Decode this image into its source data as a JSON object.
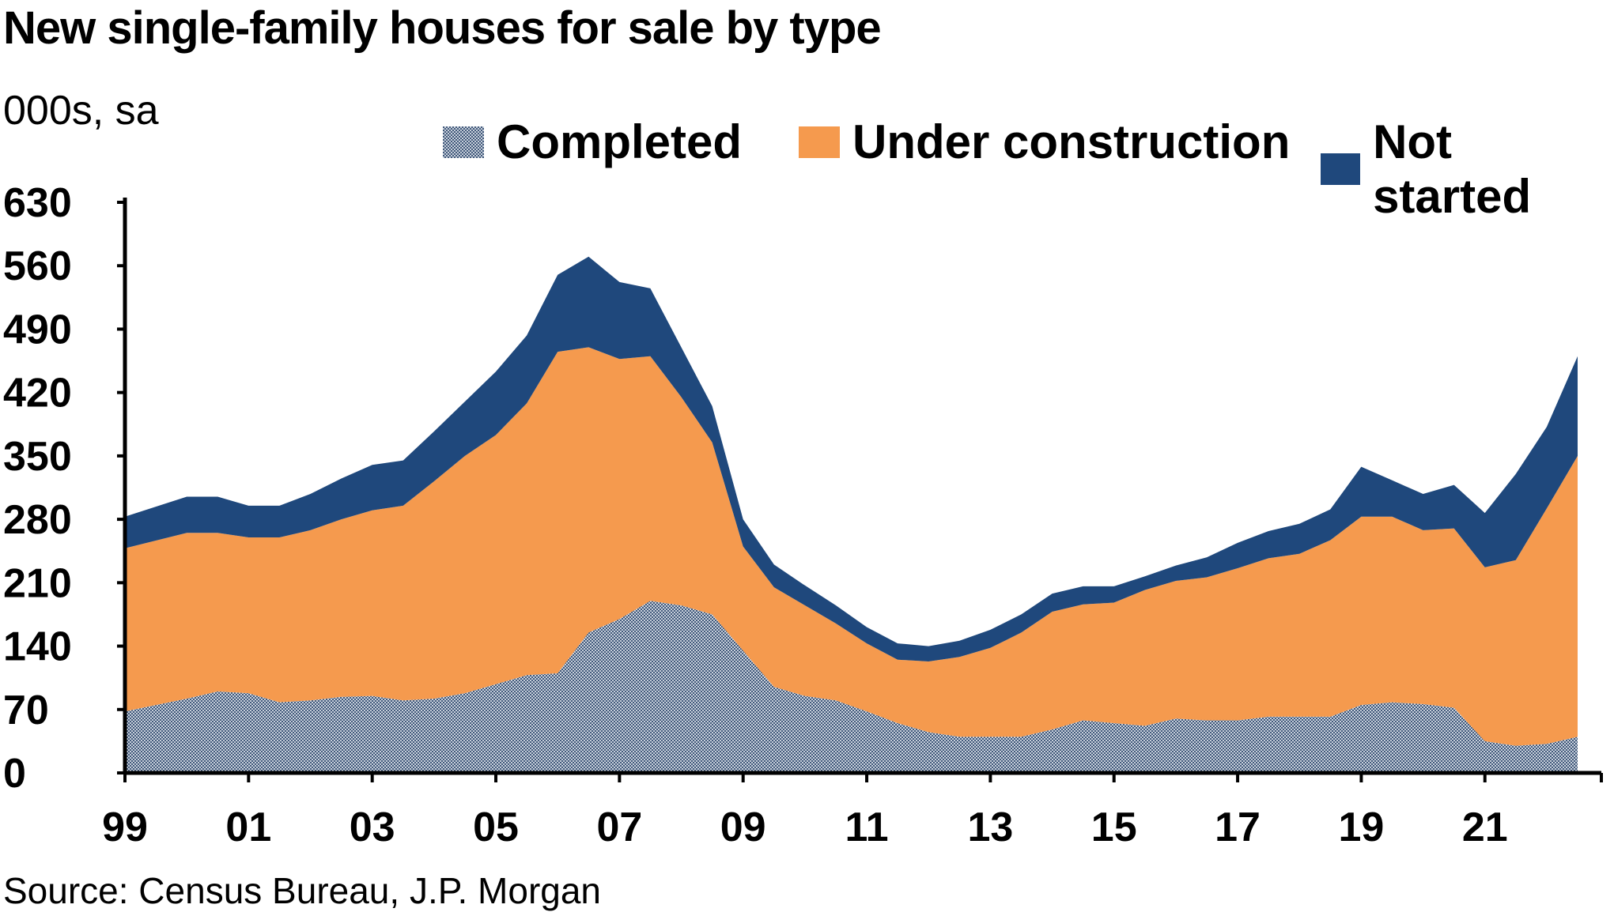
{
  "header": {
    "title": "New single-family houses for sale by type",
    "subtitle": "000s, sa"
  },
  "legend": [
    {
      "label": "Completed",
      "color": "#8f9fb6",
      "pattern": "dotted"
    },
    {
      "label": "Under construction",
      "color": "#f59a4e"
    },
    {
      "label": "Not started",
      "color": "#1f487c"
    }
  ],
  "source": "Source: Census Bureau, J.P. Morgan",
  "chart_data": {
    "type": "area",
    "stacked": true,
    "x_start_year": 1999,
    "x_end_year": 2022.5,
    "x": [
      1999.0,
      2000.0,
      2000.5,
      2001.0,
      2001.5,
      2002.0,
      2002.5,
      2003.0,
      2003.5,
      2004.0,
      2004.5,
      2005.0,
      2005.5,
      2006.0,
      2006.5,
      2007.0,
      2007.5,
      2008.0,
      2008.5,
      2009.0,
      2009.5,
      2010.0,
      2010.5,
      2011.0,
      2011.5,
      2012.0,
      2012.5,
      2013.0,
      2013.5,
      2014.0,
      2014.5,
      2015.0,
      2015.5,
      2016.0,
      2016.5,
      2017.0,
      2017.5,
      2018.0,
      2018.5,
      2019.0,
      2019.5,
      2020.0,
      2020.5,
      2021.0,
      2021.5,
      2022.0,
      2022.5
    ],
    "series": [
      {
        "name": "Completed",
        "values": [
          68,
          82,
          90,
          88,
          78,
          80,
          84,
          85,
          80,
          82,
          88,
          98,
          108,
          110,
          155,
          170,
          190,
          185,
          175,
          135,
          95,
          85,
          80,
          68,
          55,
          45,
          40,
          40,
          40,
          48,
          58,
          55,
          52,
          60,
          58,
          58,
          62,
          62,
          62,
          75,
          78,
          76,
          72,
          35,
          30,
          32,
          40
        ]
      },
      {
        "name": "Under construction",
        "values": [
          180,
          183,
          175,
          172,
          182,
          188,
          196,
          205,
          215,
          240,
          262,
          275,
          300,
          355,
          315,
          287,
          270,
          230,
          190,
          115,
          110,
          100,
          85,
          75,
          70,
          78,
          88,
          98,
          115,
          130,
          128,
          133,
          150,
          152,
          158,
          168,
          175,
          180,
          195,
          208,
          205,
          192,
          198,
          192,
          205,
          260,
          310
        ]
      },
      {
        "name": "Not started",
        "values": [
          35,
          40,
          40,
          35,
          35,
          40,
          45,
          50,
          50,
          55,
          60,
          70,
          75,
          85,
          100,
          85,
          75,
          55,
          40,
          30,
          25,
          22,
          20,
          18,
          18,
          17,
          18,
          20,
          20,
          20,
          20,
          18,
          15,
          17,
          22,
          28,
          30,
          33,
          34,
          55,
          40,
          40,
          48,
          60,
          95,
          90,
          110
        ]
      }
    ],
    "y_ticks": [
      0,
      70,
      140,
      210,
      280,
      350,
      420,
      490,
      560,
      630
    ],
    "x_tick_labels": [
      "99",
      "01",
      "03",
      "05",
      "07",
      "09",
      "11",
      "13",
      "15",
      "17",
      "19",
      "21"
    ],
    "ylim": [
      0,
      630
    ],
    "grid": false,
    "legend_position": "top-right"
  }
}
